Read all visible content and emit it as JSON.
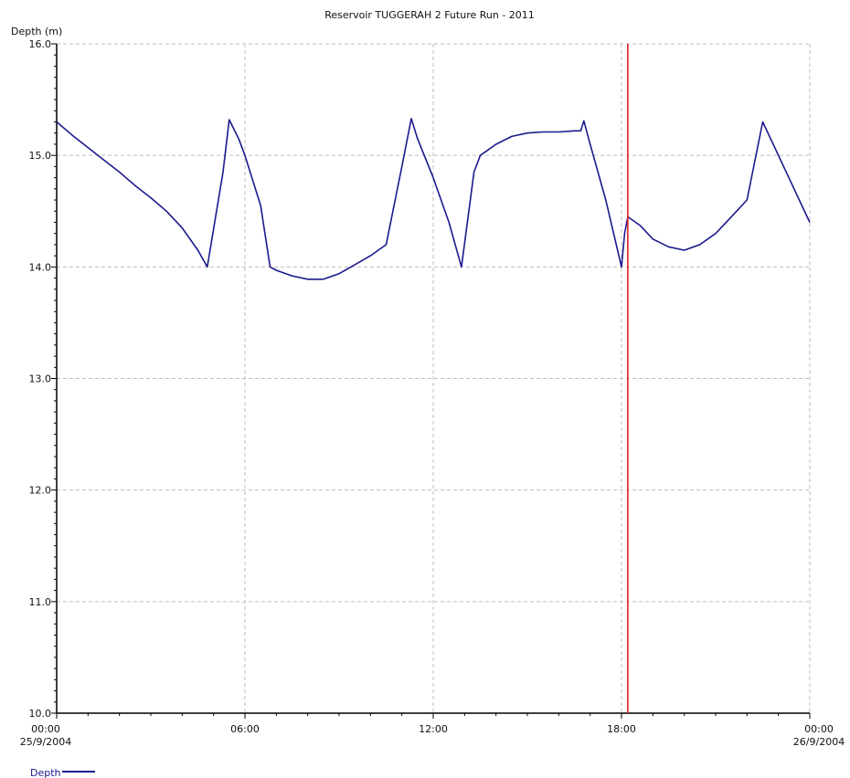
{
  "chart_data": {
    "type": "line",
    "title": "Reservoir TUGGERAH 2 Future Run - 2011",
    "ylabel": "Depth (m)",
    "xlabel": "",
    "ylim": [
      10.0,
      16.0
    ],
    "xlim_hours": [
      0,
      24
    ],
    "y_ticks": [
      "10.0",
      "11.0",
      "12.0",
      "13.0",
      "14.0",
      "15.0",
      "16.0"
    ],
    "x_ticks": [
      {
        "label": "00:00",
        "sub": "25/9/2004"
      },
      {
        "label": "06:00",
        "sub": ""
      },
      {
        "label": "12:00",
        "sub": ""
      },
      {
        "label": "18:00",
        "sub": ""
      },
      {
        "label": "00:00",
        "sub": "26/9/2004"
      }
    ],
    "grid": true,
    "legend_position": "bottom-left",
    "marker_line_hours": 18.2,
    "colors": {
      "series": "#1a1a8c",
      "marker": "#e31e1e",
      "grid": "#bdbdbd"
    },
    "series": [
      {
        "name": "Depth",
        "x": [
          0,
          0.5,
          1,
          1.5,
          2,
          2.5,
          3,
          3.5,
          4,
          4.5,
          4.8,
          5.3,
          5.5,
          5.8,
          6.0,
          6.5,
          6.8,
          7.0,
          7.5,
          8.0,
          8.5,
          9.0,
          9.5,
          10.0,
          10.5,
          11.0,
          11.3,
          11.5,
          12.0,
          12.5,
          12.9,
          13.3,
          13.5,
          14.0,
          14.5,
          15.0,
          15.5,
          16.0,
          16.5,
          16.7,
          16.8,
          17.0,
          17.5,
          18.0,
          18.1,
          18.2,
          18.6,
          19.0,
          19.5,
          20.0,
          20.5,
          21.0,
          21.5,
          22.0,
          22.5,
          23.0,
          23.5,
          24.0
        ],
        "values": [
          15.3,
          15.18,
          15.07,
          14.96,
          14.85,
          14.73,
          14.62,
          14.5,
          14.35,
          14.15,
          14.0,
          14.85,
          15.32,
          15.15,
          15.0,
          14.55,
          14.0,
          13.97,
          13.92,
          13.89,
          13.89,
          13.94,
          14.02,
          14.1,
          14.2,
          14.9,
          15.33,
          15.15,
          14.8,
          14.4,
          14.0,
          14.85,
          15.0,
          15.1,
          15.17,
          15.2,
          15.21,
          15.21,
          15.22,
          15.22,
          15.31,
          15.1,
          14.6,
          14.0,
          14.3,
          14.45,
          14.37,
          14.25,
          14.18,
          14.15,
          14.2,
          14.3,
          14.45,
          14.6,
          15.3,
          15.0,
          14.7,
          14.4
        ]
      }
    ]
  }
}
